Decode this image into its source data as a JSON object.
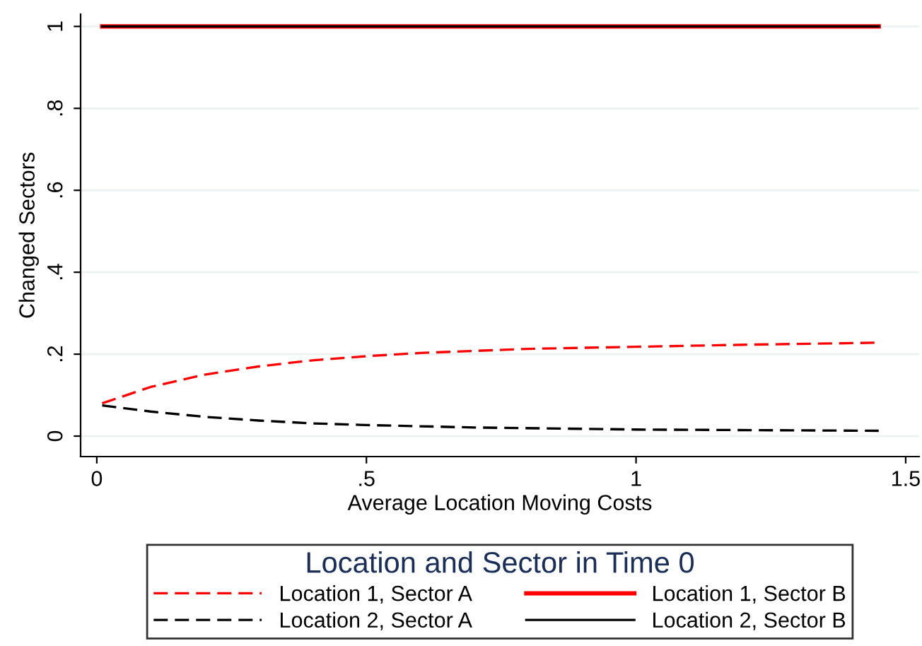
{
  "chart_data": {
    "type": "line",
    "xlabel": "Average Location Moving Costs",
    "ylabel": "Changed Sectors",
    "legend_title": "Location and Sector in Time 0",
    "xlim": [
      -0.03,
      1.525
    ],
    "xticks": [
      0,
      {
        "value": 0.5,
        "label": ".5"
      },
      1,
      1.5
    ],
    "ylim": [
      -0.05,
      1.03
    ],
    "yticks": [
      0,
      {
        "value": 0.2,
        "label": ".2"
      },
      {
        "value": 0.4,
        "label": ".4"
      },
      {
        "value": 0.6,
        "label": ".6"
      },
      {
        "value": 0.8,
        "label": ".8"
      },
      1
    ],
    "grid": "y",
    "legend": "bottom",
    "series": [
      {
        "name": "Location 1, Sector A",
        "color": "#ff0000",
        "line_style": "dashed",
        "x": [
          0.01,
          0.1,
          0.2,
          0.3,
          0.4,
          0.5,
          0.6,
          0.7,
          0.8,
          1.0,
          1.2,
          1.45
        ],
        "values": [
          0.08,
          0.12,
          0.15,
          0.17,
          0.185,
          0.195,
          0.203,
          0.208,
          0.213,
          0.218,
          0.223,
          0.228
        ]
      },
      {
        "name": "Location 1, Sector B",
        "color": "#ff0000",
        "line_style": "solid",
        "x": [
          0.01,
          1.45
        ],
        "values": [
          1,
          1
        ]
      },
      {
        "name": "Location 2, Sector A",
        "color": "#000000",
        "line_style": "dashed",
        "x": [
          0.01,
          0.1,
          0.2,
          0.3,
          0.4,
          0.5,
          0.7,
          1.0,
          1.45
        ],
        "values": [
          0.075,
          0.06,
          0.047,
          0.038,
          0.031,
          0.027,
          0.021,
          0.016,
          0.013
        ]
      },
      {
        "name": "Location 2, Sector B",
        "color": "#000000",
        "line_style": "solid",
        "x": [
          0.01,
          1.45
        ],
        "values": [
          1,
          1
        ]
      }
    ]
  }
}
